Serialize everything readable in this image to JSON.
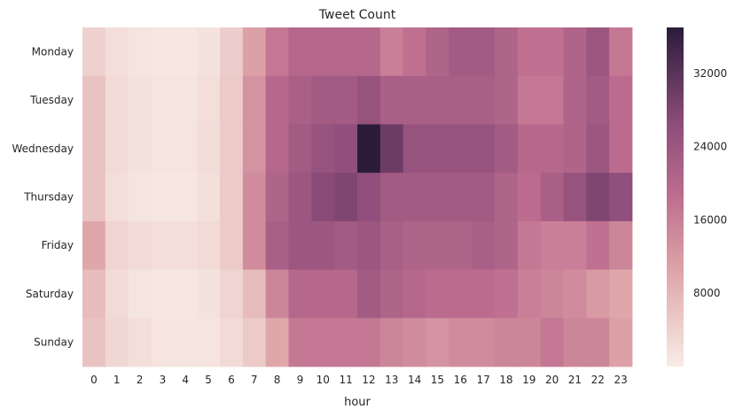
{
  "chart_data": {
    "type": "heatmap",
    "title": "Tweet Count",
    "xlabel": "hour",
    "ylabel": "",
    "x": [
      "0",
      "1",
      "2",
      "3",
      "4",
      "5",
      "6",
      "7",
      "8",
      "9",
      "10",
      "11",
      "12",
      "13",
      "14",
      "15",
      "16",
      "17",
      "18",
      "19",
      "20",
      "21",
      "22",
      "23"
    ],
    "y": [
      "Monday",
      "Tuesday",
      "Wednesday",
      "Thursday",
      "Friday",
      "Saturday",
      "Sunday"
    ],
    "values": [
      [
        4000,
        2000,
        1000,
        800,
        800,
        1500,
        4500,
        11000,
        17000,
        20000,
        20000,
        20000,
        20000,
        16000,
        18000,
        21000,
        23000,
        23000,
        21000,
        18000,
        18000,
        21000,
        24000,
        17000
      ],
      [
        6000,
        2500,
        1500,
        1000,
        1000,
        2000,
        5000,
        13000,
        20000,
        22000,
        23000,
        23000,
        25000,
        22000,
        22000,
        22000,
        22000,
        22000,
        21000,
        17000,
        17000,
        21000,
        23000,
        19000
      ],
      [
        6000,
        2500,
        1500,
        1200,
        1200,
        2200,
        5000,
        13000,
        20000,
        23000,
        25000,
        26000,
        37000,
        30000,
        25000,
        25000,
        25000,
        25000,
        23000,
        20000,
        20000,
        21000,
        24000,
        19000
      ],
      [
        6000,
        2000,
        1000,
        800,
        800,
        1800,
        5000,
        14000,
        21000,
        24000,
        27000,
        28000,
        26000,
        23000,
        23000,
        23000,
        23000,
        23000,
        21000,
        19000,
        22000,
        25000,
        28000,
        26000
      ],
      [
        10000,
        3500,
        2500,
        2000,
        2000,
        2500,
        5000,
        14000,
        22000,
        24000,
        24000,
        23000,
        24000,
        22000,
        21000,
        21000,
        21000,
        22000,
        21000,
        17000,
        16000,
        16000,
        18000,
        15000
      ],
      [
        7000,
        2500,
        1000,
        800,
        800,
        1500,
        3500,
        7000,
        15000,
        20000,
        20000,
        20000,
        23000,
        21000,
        20000,
        19000,
        19000,
        19000,
        18000,
        16000,
        15000,
        14000,
        12000,
        10000
      ],
      [
        6000,
        3000,
        2000,
        1200,
        1200,
        1200,
        2500,
        5000,
        10000,
        17000,
        17000,
        17000,
        17000,
        15000,
        14000,
        13000,
        14000,
        14000,
        15000,
        15000,
        17000,
        15000,
        15000,
        11000
      ]
    ],
    "colorbar": {
      "ticks": [
        8000,
        16000,
        24000,
        32000
      ],
      "range": [
        0,
        37000
      ]
    },
    "colors": {
      "low": "#f8ece6",
      "low_mid": "#dea5a8",
      "mid": "#be6e8f",
      "mid_high": "#8c4c7a",
      "high": "#2b1c3b"
    },
    "grid": false,
    "legend": "colorbar right"
  }
}
